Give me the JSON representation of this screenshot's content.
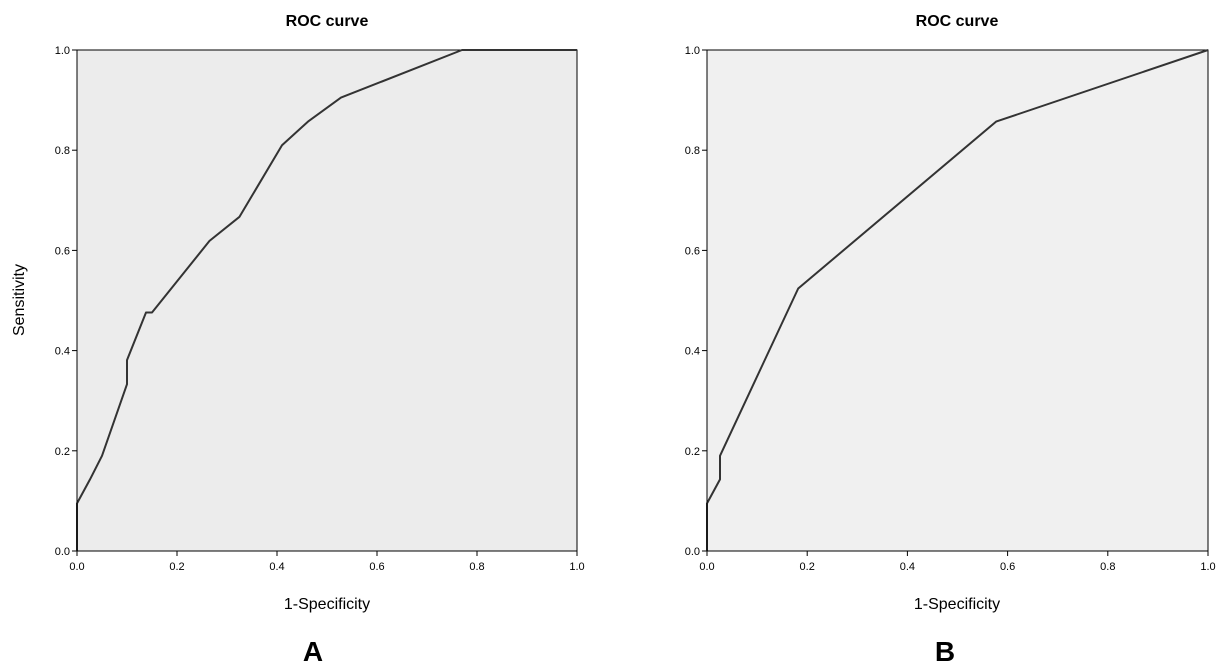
{
  "chart_data": [
    {
      "type": "line",
      "panel_label": "A",
      "title": "ROC curve",
      "xlabel": "1-Specificity",
      "ylabel": "Sensitivity",
      "xlim": [
        0,
        1
      ],
      "ylim": [
        0,
        1
      ],
      "x_ticks": [
        "0.0",
        "0.2",
        "0.4",
        "0.6",
        "0.8",
        "1.0"
      ],
      "y_ticks": [
        "0.0",
        "0.2",
        "0.4",
        "0.6",
        "0.8",
        "1.0"
      ],
      "grid": false,
      "series": [
        {
          "x": [
            0.0,
            0.0,
            0.026,
            0.05,
            0.1,
            0.1,
            0.138,
            0.15,
            0.265,
            0.325,
            0.41,
            0.462,
            0.528,
            0.77,
            1.0
          ],
          "y": [
            0.0,
            0.095,
            0.143,
            0.19,
            0.333,
            0.381,
            0.476,
            0.476,
            0.619,
            0.667,
            0.81,
            0.857,
            0.905,
            1.0,
            1.0
          ]
        }
      ]
    },
    {
      "type": "line",
      "panel_label": "B",
      "title": "ROC curve",
      "xlabel": "1-Specificity",
      "ylabel": "",
      "xlim": [
        0,
        1
      ],
      "ylim": [
        0,
        1
      ],
      "x_ticks": [
        "0.0",
        "0.2",
        "0.4",
        "0.6",
        "0.8",
        "1.0"
      ],
      "y_ticks": [
        "0.0",
        "0.2",
        "0.4",
        "0.6",
        "0.8",
        "1.0"
      ],
      "grid": false,
      "series": [
        {
          "x": [
            0.0,
            0.0,
            0.026,
            0.026,
            0.182,
            0.577,
            1.0
          ],
          "y": [
            0.0,
            0.095,
            0.143,
            0.19,
            0.524,
            0.857,
            1.0
          ]
        }
      ]
    }
  ],
  "style": {
    "panel_bg_a": "#ececec",
    "panel_bg_b": "#f0f0f0",
    "line_color": "#333333",
    "axis_color": "#000000"
  }
}
